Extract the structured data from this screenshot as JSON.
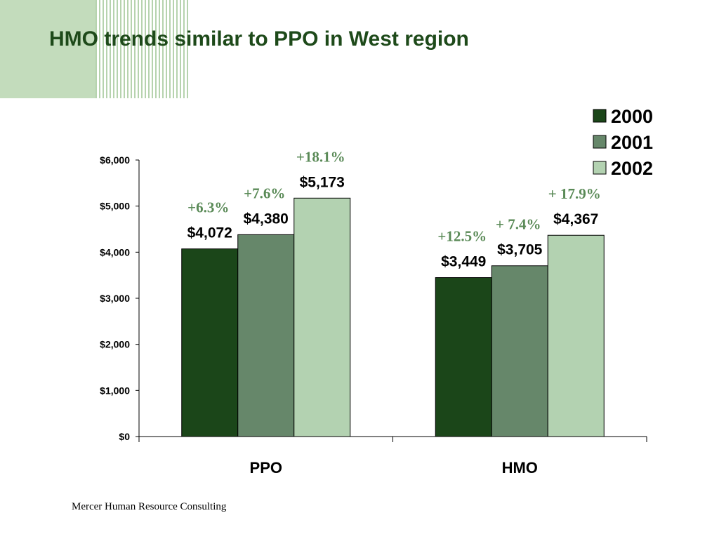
{
  "slide": {
    "title": "HMO trends similar to PPO in West region",
    "footer": "Mercer Human Resource Consulting"
  },
  "chart_data": {
    "type": "bar",
    "categories": [
      "PPO",
      "HMO"
    ],
    "series": [
      {
        "name": "2000",
        "values": [
          4072,
          3449
        ],
        "labels": [
          "$4,072",
          "$3,449"
        ],
        "changes": [
          "+6.3%",
          "+12.5%"
        ],
        "color": "#1b4619"
      },
      {
        "name": "2001",
        "values": [
          4380,
          3705
        ],
        "labels": [
          "$4,380",
          "$3,705"
        ],
        "changes": [
          "+7.6%",
          "+ 7.4%"
        ],
        "color": "#66876a"
      },
      {
        "name": "2002",
        "values": [
          5173,
          4367
        ],
        "labels": [
          "$5,173",
          "$4,367"
        ],
        "changes": [
          "+18.1%",
          "+ 17.9%"
        ],
        "color": "#b3d2b1"
      }
    ],
    "ylim": [
      0,
      6000
    ],
    "yticks": [
      0,
      1000,
      2000,
      3000,
      4000,
      5000,
      6000
    ],
    "ytick_labels": [
      "$0",
      "$1,000",
      "$2,000",
      "$3,000",
      "$4,000",
      "$5,000",
      "$6,000"
    ],
    "legend_position": "top-right",
    "change_label_color": "#5a8a57"
  }
}
